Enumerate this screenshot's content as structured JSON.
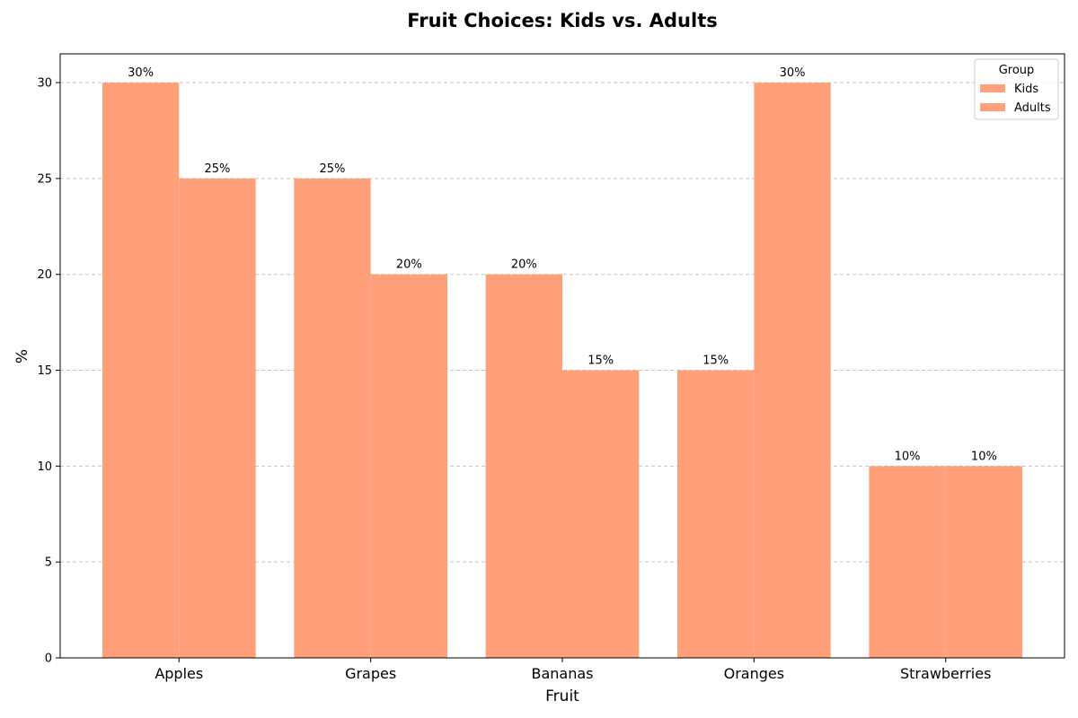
{
  "chart_data": {
    "type": "bar",
    "title": "Fruit Choices: Kids vs. Adults",
    "xlabel": "Fruit",
    "ylabel": "%",
    "categories": [
      "Apples",
      "Grapes",
      "Bananas",
      "Oranges",
      "Strawberries"
    ],
    "series": [
      {
        "name": "Kids",
        "values": [
          30,
          25,
          20,
          15,
          10
        ],
        "color": "#FFA07A"
      },
      {
        "name": "Adults",
        "values": [
          25,
          20,
          15,
          30,
          10
        ],
        "color": "#FFA07A"
      }
    ],
    "value_suffix": "%",
    "ylim": [
      0,
      31.5
    ],
    "yticks": [
      0,
      5,
      10,
      15,
      20,
      25,
      30
    ],
    "grid": "y-dashed",
    "legend": {
      "title": "Group",
      "placement": "top-right"
    }
  }
}
